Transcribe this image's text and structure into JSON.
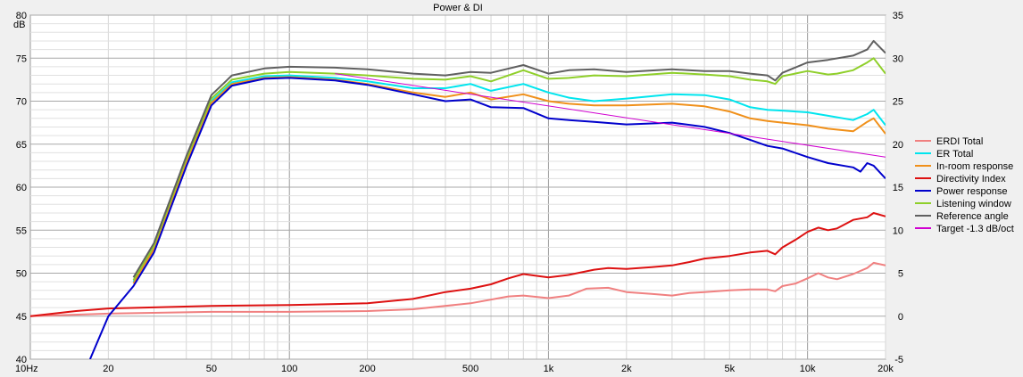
{
  "chart_data": {
    "type": "line",
    "title": "Power & DI",
    "x_scale": "log",
    "grid": true,
    "legend_position": "right",
    "xlim": [
      10,
      20000
    ],
    "ylim_left": [
      40,
      80
    ],
    "ylim_right": [
      -5,
      35
    ],
    "ylabel_left": "dB",
    "x_ticks": [
      {
        "v": 10,
        "label": "10Hz"
      },
      {
        "v": 20,
        "label": "20"
      },
      {
        "v": 50,
        "label": "50"
      },
      {
        "v": 100,
        "label": "100"
      },
      {
        "v": 200,
        "label": "200"
      },
      {
        "v": 500,
        "label": "500"
      },
      {
        "v": 1000,
        "label": "1k"
      },
      {
        "v": 2000,
        "label": "2k"
      },
      {
        "v": 5000,
        "label": "5k"
      },
      {
        "v": 10000,
        "label": "10k"
      },
      {
        "v": 20000,
        "label": "20k"
      }
    ],
    "y_ticks_left": [
      "40",
      "45",
      "50",
      "55",
      "60",
      "65",
      "70",
      "75",
      "80"
    ],
    "y_ticks_right": [
      "-5",
      "0",
      "5",
      "10",
      "15",
      "20",
      "25",
      "30",
      "35"
    ],
    "series": [
      {
        "name": "ERDI Total",
        "color": "#f08080",
        "axis": "right",
        "points": [
          [
            10,
            0
          ],
          [
            20,
            0.3
          ],
          [
            50,
            0.5
          ],
          [
            100,
            0.5
          ],
          [
            200,
            0.6
          ],
          [
            300,
            0.8
          ],
          [
            500,
            1.5
          ],
          [
            700,
            2.3
          ],
          [
            800,
            2.4
          ],
          [
            1000,
            2.1
          ],
          [
            1200,
            2.4
          ],
          [
            1400,
            3.2
          ],
          [
            1700,
            3.3
          ],
          [
            2000,
            2.8
          ],
          [
            2500,
            2.6
          ],
          [
            3000,
            2.4
          ],
          [
            3500,
            2.7
          ],
          [
            4000,
            2.8
          ],
          [
            5000,
            3
          ],
          [
            6000,
            3.1
          ],
          [
            7000,
            3.1
          ],
          [
            7500,
            2.9
          ],
          [
            8000,
            3.5
          ],
          [
            9000,
            3.8
          ],
          [
            10000,
            4.4
          ],
          [
            11000,
            5
          ],
          [
            12000,
            4.5
          ],
          [
            13000,
            4.3
          ],
          [
            15000,
            4.9
          ],
          [
            17000,
            5.6
          ],
          [
            18000,
            6.2
          ],
          [
            20000,
            5.9
          ]
        ]
      },
      {
        "name": "ER Total",
        "color": "#00e5ee",
        "axis": "left",
        "points": [
          [
            25,
            49
          ],
          [
            30,
            53
          ],
          [
            40,
            63
          ],
          [
            50,
            70
          ],
          [
            60,
            72.2
          ],
          [
            80,
            72.9
          ],
          [
            100,
            73
          ],
          [
            150,
            72.7
          ],
          [
            200,
            72.3
          ],
          [
            300,
            71.5
          ],
          [
            400,
            71.5
          ],
          [
            500,
            72
          ],
          [
            600,
            71.2
          ],
          [
            800,
            72
          ],
          [
            1000,
            71
          ],
          [
            1200,
            70.4
          ],
          [
            1500,
            70
          ],
          [
            2000,
            70.3
          ],
          [
            3000,
            70.8
          ],
          [
            4000,
            70.7
          ],
          [
            5000,
            70.2
          ],
          [
            6000,
            69.3
          ],
          [
            7000,
            69
          ],
          [
            8000,
            68.9
          ],
          [
            10000,
            68.7
          ],
          [
            12000,
            68.3
          ],
          [
            15000,
            67.8
          ],
          [
            17000,
            68.5
          ],
          [
            18000,
            69
          ],
          [
            20000,
            67.2
          ]
        ]
      },
      {
        "name": "In-room response",
        "color": "#f0901a",
        "axis": "left",
        "points": [
          [
            25,
            48.8
          ],
          [
            30,
            52.8
          ],
          [
            40,
            62.8
          ],
          [
            50,
            69.8
          ],
          [
            60,
            72
          ],
          [
            80,
            72.7
          ],
          [
            100,
            72.8
          ],
          [
            150,
            72.5
          ],
          [
            200,
            72
          ],
          [
            300,
            71
          ],
          [
            400,
            70.5
          ],
          [
            500,
            71
          ],
          [
            600,
            70.2
          ],
          [
            800,
            70.8
          ],
          [
            1000,
            70
          ],
          [
            1200,
            69.7
          ],
          [
            1500,
            69.5
          ],
          [
            2000,
            69.5
          ],
          [
            3000,
            69.7
          ],
          [
            4000,
            69.4
          ],
          [
            5000,
            68.8
          ],
          [
            6000,
            68
          ],
          [
            7000,
            67.7
          ],
          [
            8000,
            67.5
          ],
          [
            10000,
            67.2
          ],
          [
            12000,
            66.8
          ],
          [
            15000,
            66.5
          ],
          [
            17000,
            67.6
          ],
          [
            18000,
            68
          ],
          [
            20000,
            66.2
          ]
        ]
      },
      {
        "name": "Directivity Index",
        "color": "#dd1111",
        "axis": "right",
        "points": [
          [
            10,
            0
          ],
          [
            15,
            0.6
          ],
          [
            20,
            0.9
          ],
          [
            50,
            1.2
          ],
          [
            100,
            1.3
          ],
          [
            200,
            1.5
          ],
          [
            300,
            2
          ],
          [
            400,
            2.8
          ],
          [
            500,
            3.2
          ],
          [
            600,
            3.7
          ],
          [
            700,
            4.4
          ],
          [
            800,
            4.9
          ],
          [
            1000,
            4.5
          ],
          [
            1200,
            4.8
          ],
          [
            1500,
            5.4
          ],
          [
            1700,
            5.6
          ],
          [
            2000,
            5.5
          ],
          [
            2500,
            5.7
          ],
          [
            3000,
            5.9
          ],
          [
            3500,
            6.3
          ],
          [
            4000,
            6.7
          ],
          [
            5000,
            7
          ],
          [
            6000,
            7.4
          ],
          [
            7000,
            7.6
          ],
          [
            7500,
            7.2
          ],
          [
            8000,
            8
          ],
          [
            9000,
            8.9
          ],
          [
            10000,
            9.8
          ],
          [
            11000,
            10.3
          ],
          [
            12000,
            10
          ],
          [
            13000,
            10.2
          ],
          [
            15000,
            11.2
          ],
          [
            17000,
            11.5
          ],
          [
            18000,
            12
          ],
          [
            20000,
            11.6
          ]
        ]
      },
      {
        "name": "Power response",
        "color": "#0000cc",
        "axis": "left",
        "points": [
          [
            17,
            40
          ],
          [
            20,
            45
          ],
          [
            25,
            48.5
          ],
          [
            30,
            52.4
          ],
          [
            40,
            62.4
          ],
          [
            50,
            69.5
          ],
          [
            60,
            71.8
          ],
          [
            80,
            72.6
          ],
          [
            100,
            72.7
          ],
          [
            150,
            72.4
          ],
          [
            200,
            71.9
          ],
          [
            300,
            70.8
          ],
          [
            400,
            70
          ],
          [
            500,
            70.2
          ],
          [
            600,
            69.3
          ],
          [
            800,
            69.2
          ],
          [
            1000,
            68
          ],
          [
            1200,
            67.8
          ],
          [
            1500,
            67.6
          ],
          [
            2000,
            67.3
          ],
          [
            3000,
            67.5
          ],
          [
            4000,
            67
          ],
          [
            5000,
            66.3
          ],
          [
            6000,
            65.5
          ],
          [
            7000,
            64.8
          ],
          [
            8000,
            64.5
          ],
          [
            10000,
            63.5
          ],
          [
            12000,
            62.8
          ],
          [
            15000,
            62.3
          ],
          [
            16000,
            61.8
          ],
          [
            17000,
            62.8
          ],
          [
            18000,
            62.5
          ],
          [
            20000,
            61
          ]
        ]
      },
      {
        "name": "Listening window",
        "color": "#8fcf2a",
        "axis": "left",
        "points": [
          [
            25,
            49.2
          ],
          [
            30,
            53.2
          ],
          [
            40,
            63.3
          ],
          [
            50,
            70.3
          ],
          [
            60,
            72.5
          ],
          [
            80,
            73.2
          ],
          [
            100,
            73.4
          ],
          [
            150,
            73.2
          ],
          [
            200,
            73
          ],
          [
            300,
            72.6
          ],
          [
            400,
            72.5
          ],
          [
            500,
            72.9
          ],
          [
            600,
            72.3
          ],
          [
            800,
            73.6
          ],
          [
            1000,
            72.6
          ],
          [
            1200,
            72.7
          ],
          [
            1500,
            73
          ],
          [
            2000,
            72.9
          ],
          [
            3000,
            73.3
          ],
          [
            4000,
            73.1
          ],
          [
            5000,
            72.9
          ],
          [
            6000,
            72.5
          ],
          [
            7000,
            72.3
          ],
          [
            7500,
            72
          ],
          [
            8000,
            72.9
          ],
          [
            10000,
            73.5
          ],
          [
            12000,
            73.1
          ],
          [
            13000,
            73.2
          ],
          [
            15000,
            73.6
          ],
          [
            17000,
            74.5
          ],
          [
            18000,
            75
          ],
          [
            20000,
            73.2
          ]
        ]
      },
      {
        "name": "Reference angle",
        "color": "#606060",
        "axis": "left",
        "points": [
          [
            25,
            49.5
          ],
          [
            30,
            53.5
          ],
          [
            40,
            63.6
          ],
          [
            50,
            70.7
          ],
          [
            60,
            73
          ],
          [
            80,
            73.8
          ],
          [
            100,
            74
          ],
          [
            150,
            73.9
          ],
          [
            200,
            73.7
          ],
          [
            300,
            73.2
          ],
          [
            400,
            73
          ],
          [
            500,
            73.4
          ],
          [
            600,
            73.3
          ],
          [
            800,
            74.2
          ],
          [
            1000,
            73.2
          ],
          [
            1200,
            73.6
          ],
          [
            1500,
            73.7
          ],
          [
            2000,
            73.4
          ],
          [
            3000,
            73.7
          ],
          [
            4000,
            73.5
          ],
          [
            5000,
            73.5
          ],
          [
            6000,
            73.2
          ],
          [
            7000,
            73
          ],
          [
            7500,
            72.4
          ],
          [
            8000,
            73.3
          ],
          [
            10000,
            74.5
          ],
          [
            12000,
            74.8
          ],
          [
            15000,
            75.3
          ],
          [
            17000,
            76
          ],
          [
            18000,
            77
          ],
          [
            20000,
            75.6
          ]
        ]
      },
      {
        "name": "Target -1.3 dB/oct",
        "color": "#d000d0",
        "axis": "left",
        "points": [
          [
            150,
            73.2
          ],
          [
            20000,
            63.5
          ]
        ]
      }
    ]
  }
}
